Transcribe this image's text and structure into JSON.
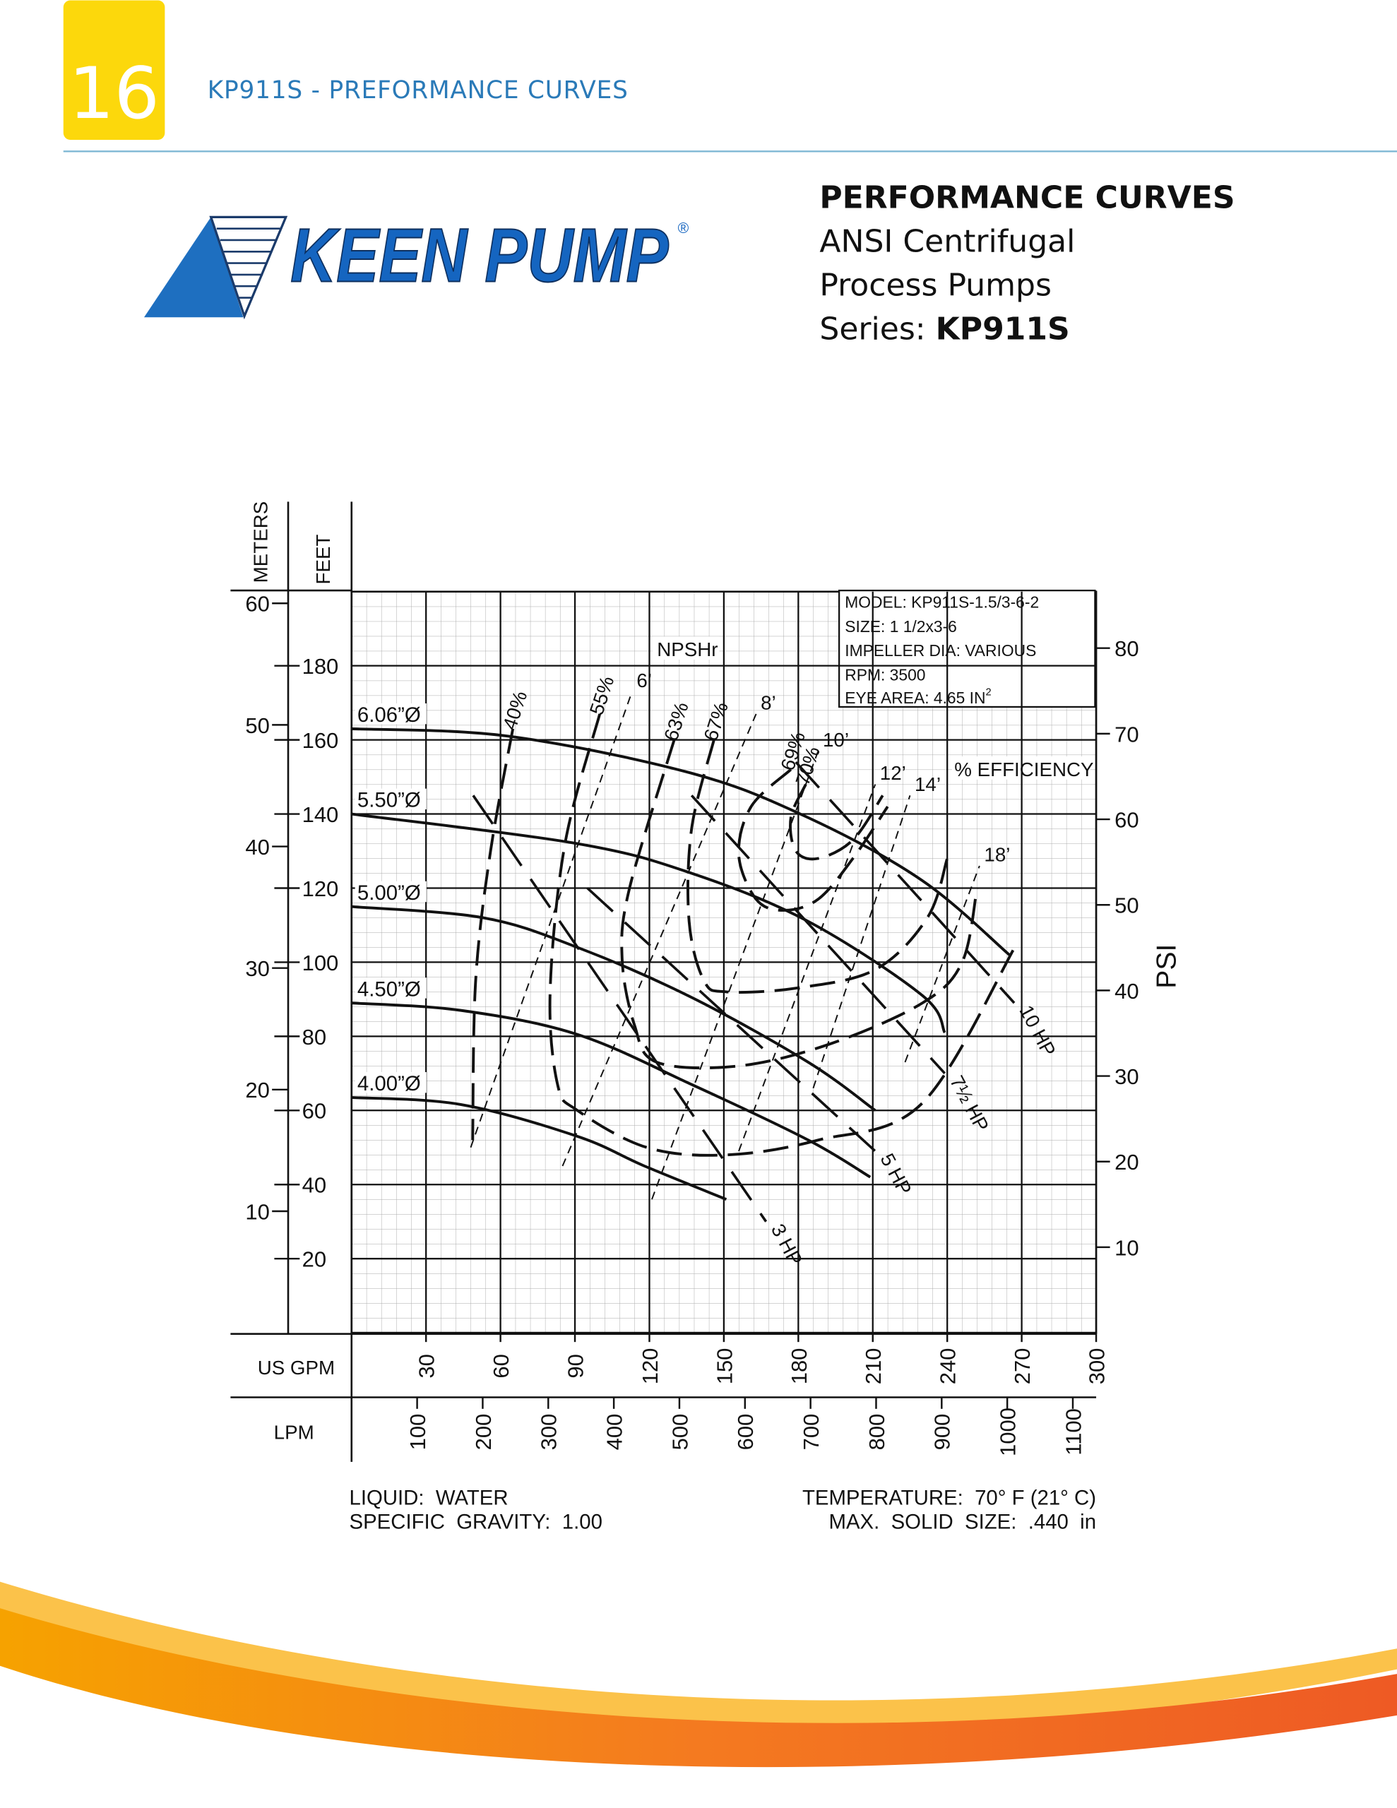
{
  "header": {
    "page_number": "16",
    "title": "KP911S - PREFORMANCE CURVES"
  },
  "logo": {
    "brand": "KEEN PUMP",
    "mark": "®"
  },
  "intro": {
    "heading": "PERFORMANCE CURVES",
    "line1": "ANSI Centrifugal",
    "line2": "Process Pumps",
    "series_label": "Series:",
    "series": "KP911S"
  },
  "chart_data": {
    "type": "line",
    "color": "#111111",
    "ylabel": "FEET",
    "meters_label": "METERS",
    "y2label": "PSI",
    "xlabel": "US GPM",
    "x2label": "LPM",
    "xlim": [
      0,
      300
    ],
    "xticks": [
      30,
      60,
      90,
      120,
      150,
      180,
      210,
      240,
      270,
      300
    ],
    "ylim": [
      0,
      200
    ],
    "yticks": [
      20,
      40,
      60,
      80,
      100,
      120,
      140,
      160,
      180
    ],
    "meters_lim": [
      0,
      60.96
    ],
    "meters_ticks": [
      10,
      20,
      30,
      40,
      50,
      60
    ],
    "y2lim": [
      0,
      86.6
    ],
    "y2ticks": [
      10,
      20,
      30,
      40,
      50,
      60,
      70,
      80
    ],
    "x2lim": [
      0,
      1135.6
    ],
    "x2ticks": [
      100,
      200,
      300,
      400,
      500,
      600,
      700,
      800,
      900,
      1000,
      1100
    ],
    "grid": true,
    "info": {
      "model": "MODEL: KP911S-1.5/3-6-2",
      "size": "SIZE: 1 1/2x3-6",
      "impeller": "IMPELLER DIA: VARIOUS",
      "rpm": "RPM: 3500",
      "eye_area": "EYE AREA: 4.65 IN",
      "eye_area_sup": "2"
    },
    "npshr_label": "NPSHr",
    "efficiency_label": "% EFFICIENCY",
    "impellers": [
      {
        "name": "6.06”Ø",
        "x": [
          0,
          63,
          137,
          184,
          230,
          265
        ],
        "values": [
          163,
          161,
          151,
          139,
          122,
          102
        ]
      },
      {
        "name": "5.50”Ø",
        "x": [
          0,
          91,
          137,
          184,
          230,
          239
        ],
        "values": [
          140,
          132,
          124,
          111,
          91,
          81
        ]
      },
      {
        "name": "5.00”Ø",
        "x": [
          0,
          53,
          91,
          137,
          184,
          211
        ],
        "values": [
          115,
          112,
          104,
          90.5,
          73,
          60
        ]
      },
      {
        "name": "4.50”Ø",
        "x": [
          0,
          44,
          91,
          137,
          184,
          209
        ],
        "values": [
          89,
          87,
          80.5,
          67,
          52,
          42
        ]
      },
      {
        "name": "4.00”Ø",
        "x": [
          0,
          44,
          91,
          118,
          151
        ],
        "values": [
          63.5,
          61.6,
          53,
          45,
          36
        ]
      }
    ],
    "efficiency": [
      {
        "name": "40%",
        "x": [
          65,
          56,
          50,
          48.8
        ],
        "values": [
          163,
          130,
          95,
          52
        ]
      },
      {
        "name": "55%",
        "x": [
          100,
          86,
          80,
          83,
          91,
          119,
          151,
          188,
          230,
          268
        ],
        "values": [
          167,
          132,
          92,
          67,
          60,
          50,
          48,
          52,
          62,
          105
        ]
      },
      {
        "name": "63%",
        "x": [
          130,
          112,
          109,
          114,
          123,
          156,
          193,
          230,
          246,
          252
        ],
        "values": [
          160,
          120,
          101,
          83,
          73,
          72,
          78,
          89,
          100,
          120
        ]
      },
      {
        "name": "67%",
        "x": [
          146,
          137,
          136,
          142,
          151,
          179,
          211,
          232,
          240
        ],
        "values": [
          160,
          136,
          111,
          95,
          92,
          93,
          98,
          112,
          128
        ]
      },
      {
        "name": "69%",
        "x": [
          177,
          161,
          156,
          163,
          174,
          188,
          202,
          216
        ],
        "values": [
          152,
          142,
          129,
          117,
          114,
          117,
          128,
          142
        ]
      },
      {
        "name": "70%",
        "x": [
          183,
          177,
          179,
          188,
          202,
          214
        ],
        "values": [
          148,
          139,
          130,
          128,
          133,
          145
        ]
      }
    ],
    "npshr": [
      {
        "name": "6’",
        "x": [
          48,
          113
        ],
        "values": [
          50,
          173
        ]
      },
      {
        "name": "8’",
        "x": [
          85,
          163
        ],
        "values": [
          45,
          167
        ]
      },
      {
        "name": "10’",
        "x": [
          121,
          188
        ],
        "values": [
          36,
          157
        ]
      },
      {
        "name": "12’",
        "x": [
          156,
          211
        ],
        "values": [
          49,
          148
        ]
      },
      {
        "name": "14’",
        "x": [
          186,
          225
        ],
        "values": [
          66,
          145
        ]
      },
      {
        "name": "18’",
        "x": [
          223,
          253
        ],
        "values": [
          73,
          126
        ]
      }
    ],
    "hp": [
      {
        "name": "3 HP",
        "x": [
          49,
          167
        ],
        "values": [
          145,
          30
        ]
      },
      {
        "name": "5 HP",
        "x": [
          95,
          211
        ],
        "values": [
          120,
          49
        ]
      },
      {
        "name": "7½ HP",
        "x": [
          137,
          239
        ],
        "values": [
          145,
          70
        ]
      },
      {
        "name": "10 HP",
        "x": [
          179,
          267
        ],
        "values": [
          154,
          89
        ]
      }
    ]
  },
  "notes": {
    "liquid": "LIQUID:  WATER",
    "gravity": "SPECIFIC  GRAVITY:  1.00",
    "temperature": "TEMPERATURE:  70° F (21° C)",
    "solids": "MAX.  SOLID  SIZE:  .440  in"
  }
}
